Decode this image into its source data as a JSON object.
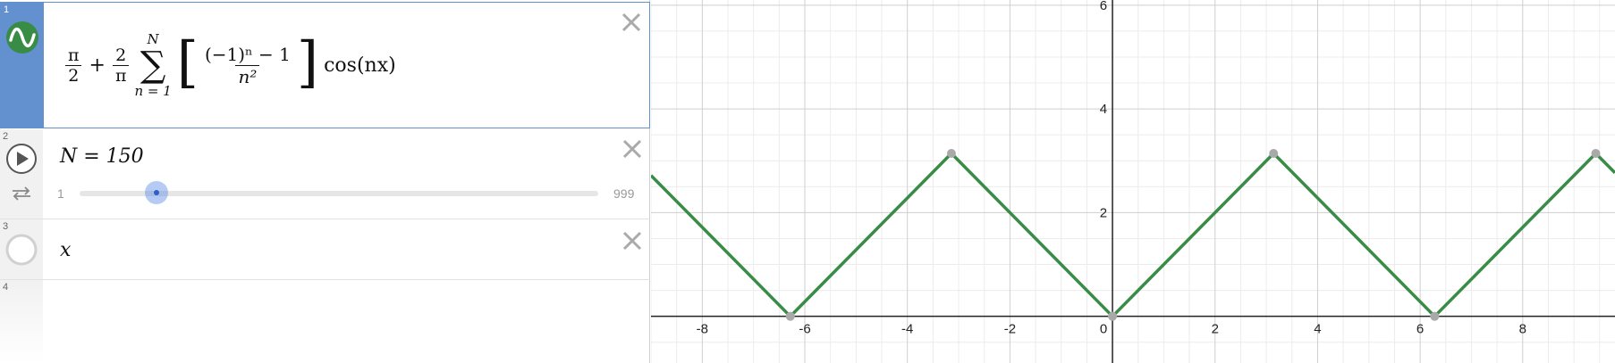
{
  "expressions": [
    {
      "number": "1",
      "formula": {
        "pi_num": "π",
        "two_den": "2",
        "two_num": "2",
        "pi_den": "π",
        "sum_upper": "N",
        "sum_lower": "n = 1",
        "inner_num": "(−1)ⁿ − 1",
        "inner_den": "n²",
        "cos": "cos(nx)"
      }
    },
    {
      "number": "2",
      "text": "N = 150",
      "slider": {
        "min": "1",
        "max": "999",
        "value": 150
      }
    },
    {
      "number": "3",
      "text": "x"
    },
    {
      "number": "4"
    }
  ],
  "colors": {
    "curve": "#388c46",
    "active_gutter": "#6390cf",
    "slider": "#2f5fc4"
  },
  "icons": [
    "wave-icon",
    "play-icon",
    "loop-icon",
    "hidden-circle-icon",
    "close-icon"
  ],
  "chart_data": {
    "type": "line",
    "xlim": [
      -9,
      9.8
    ],
    "ylim": [
      -0.9,
      6.1
    ],
    "x_ticks": [
      "-8",
      "-6",
      "-4",
      "-2",
      "0",
      "2",
      "4",
      "6",
      "8"
    ],
    "y_ticks": [
      "2",
      "4",
      "6"
    ],
    "grid": true,
    "series": [
      {
        "x": [
          -9.0,
          -6.2832,
          -3.1416,
          0,
          3.1416,
          6.2832,
          9.4248,
          9.8
        ],
        "y": [
          2.7168,
          0,
          3.1416,
          0,
          3.1416,
          0,
          3.1416,
          2.7664
        ]
      }
    ],
    "points": [
      {
        "x": -6.2832,
        "y": 0
      },
      {
        "x": -3.1416,
        "y": 3.1416
      },
      {
        "x": 0,
        "y": 0
      },
      {
        "x": 3.1416,
        "y": 3.1416
      },
      {
        "x": 6.2832,
        "y": 0
      },
      {
        "x": 9.4248,
        "y": 3.1416
      }
    ]
  }
}
